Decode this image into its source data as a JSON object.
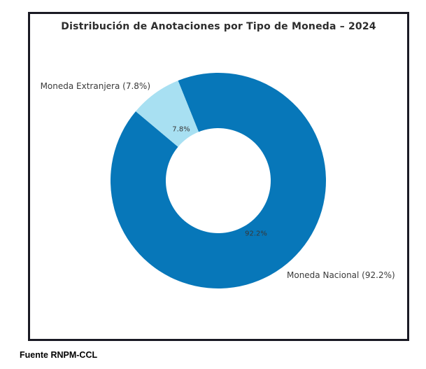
{
  "chart_data": {
    "type": "pie",
    "title": "Distribución de Anotaciones por Tipo de Moneda – 2024",
    "categories": [
      "Moneda Nacional",
      "Moneda Extranjera"
    ],
    "values": [
      92.2,
      7.8
    ],
    "unit": "%",
    "labels_display": [
      "Moneda Nacional (92.2%)",
      "Moneda Extranjera (7.8%)"
    ],
    "pct_labels": [
      "92.2%",
      "7.8%"
    ],
    "colors": [
      "#0777B9",
      "#A8E0F2"
    ],
    "donut": true,
    "inner_radius_ratio": 0.487,
    "start_angle": 140,
    "counterclockwise": true,
    "legend": "none",
    "frame_border_color": "#1a1a24",
    "source_note": "Fuente RNPM-CCL"
  }
}
